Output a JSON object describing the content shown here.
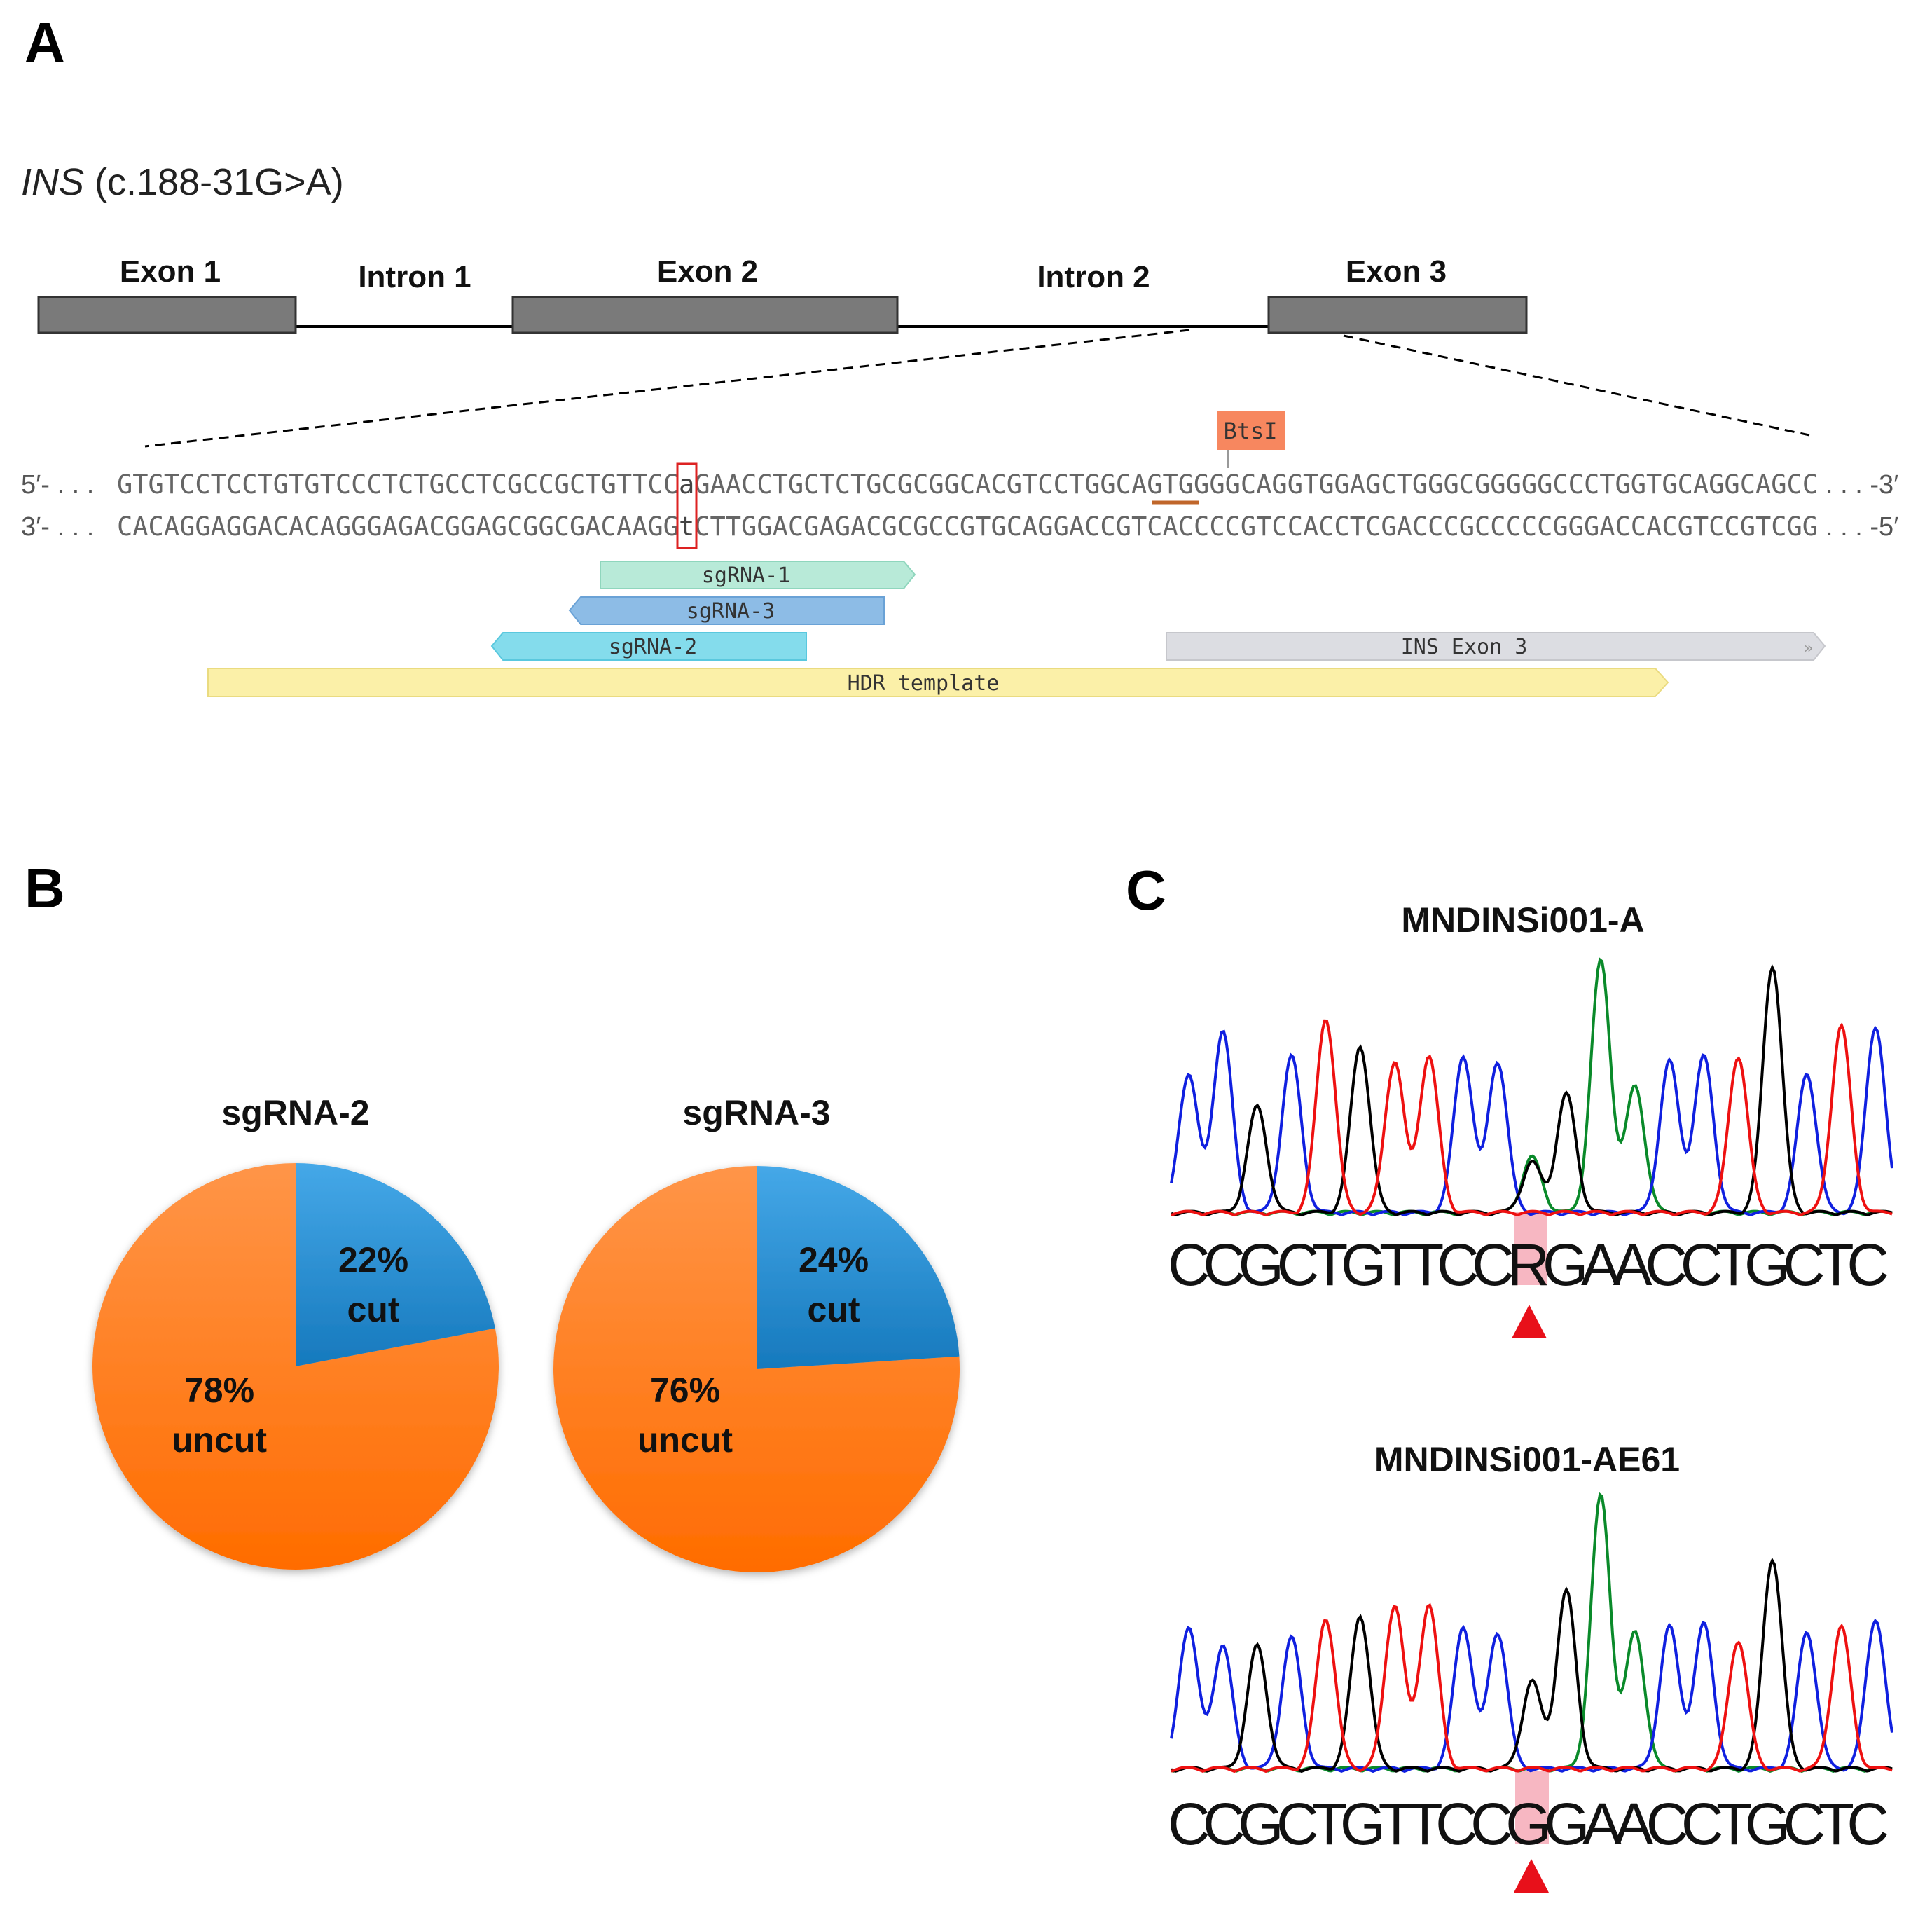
{
  "panelA": {
    "label": "A",
    "gene": "INS",
    "variant": " (c.188-31G>A)",
    "exons": [
      "Exon 1",
      "Exon 2",
      "Exon 3"
    ],
    "introns": [
      "Intron 1",
      "Intron 2"
    ],
    "enzyme": "BtsI",
    "top": {
      "start": "5′- . . .",
      "pre": "GTGTCCTCCTGTGTCCCTCTGCCTCGCCGCTGTTCC",
      "mut": "a",
      "post": "GAACCTGCTCTGCGCGGCACGTCCTGGCAGTGGGGCAGGTGGAGCTGGGCGGGGGCCCTGGTGCAGGCAGCC",
      "end": ". . . -3′"
    },
    "bottom": {
      "start": "3′- . . .",
      "pre": "CACAGGAGGACACAGGGAGACGGAGCGGCGACAAGG",
      "mut": "t",
      "post": "CTTGGACGAGACGCGCCGTGCAGGACCGTCACCCCGTCCACCTCGACCCGCCCCCGGGACCACGTCCGTCGG",
      "end": ". . . -5′"
    },
    "features": {
      "sg1": "sgRNA-1",
      "sg3": "sgRNA-3",
      "sg2": "sgRNA-2",
      "exon3": "INS Exon 3",
      "hdr": "HDR template"
    }
  },
  "panelB": {
    "label": "B",
    "pies": [
      {
        "title": "sgRNA-2",
        "cut": 22,
        "uncut": 78,
        "cut_pct": "22%",
        "cut_label": "cut",
        "uncut_pct": "78%",
        "uncut_label": "uncut"
      },
      {
        "title": "sgRNA-3",
        "cut": 24,
        "uncut": 76,
        "cut_pct": "24%",
        "cut_label": "cut",
        "uncut_pct": "76%",
        "uncut_label": "uncut"
      }
    ],
    "colors": {
      "cut": "#2b8fd6",
      "uncut": "#ff7a1f"
    }
  },
  "panelC": {
    "label": "C",
    "base_colors": {
      "A": "#0a8a2a",
      "C": "#1020e0",
      "G": "#000000",
      "T": "#ee1111"
    },
    "traces": [
      {
        "title": "MNDINSi001-A",
        "calls": [
          "CCGCTGTTCC",
          "R",
          "GAACCTGCTC"
        ],
        "peaks": [
          [
            "C",
            0.55
          ],
          [
            "C",
            0.72
          ],
          [
            "G",
            0.42
          ],
          [
            "C",
            0.62
          ],
          [
            "T",
            0.77
          ],
          [
            "G",
            0.66
          ],
          [
            "T",
            0.6
          ],
          [
            "T",
            0.62
          ],
          [
            "C",
            0.62
          ],
          [
            "C",
            0.6
          ],
          [
            "A",
            0.22
          ],
          [
            "G",
            0.47
          ],
          [
            "A",
            1.0
          ],
          [
            "A",
            0.5
          ],
          [
            "C",
            0.6
          ],
          [
            "C",
            0.62
          ],
          [
            "T",
            0.62
          ],
          [
            "G",
            0.98
          ],
          [
            "C",
            0.55
          ],
          [
            "T",
            0.74
          ],
          [
            "C",
            0.74
          ]
        ],
        "extra": [
          [
            "G",
            10,
            0.2
          ]
        ]
      },
      {
        "title": "MNDINSi001-AE61",
        "calls": [
          "CCGCTGTTCC",
          "G",
          "GAACCTGCTC"
        ],
        "peaks": [
          [
            "C",
            0.52
          ],
          [
            "C",
            0.45
          ],
          [
            "G",
            0.45
          ],
          [
            "C",
            0.48
          ],
          [
            "T",
            0.55
          ],
          [
            "G",
            0.56
          ],
          [
            "T",
            0.6
          ],
          [
            "T",
            0.6
          ],
          [
            "C",
            0.52
          ],
          [
            "C",
            0.5
          ],
          [
            "G",
            0.32
          ],
          [
            "G",
            0.65
          ],
          [
            "A",
            1.0
          ],
          [
            "A",
            0.5
          ],
          [
            "C",
            0.52
          ],
          [
            "C",
            0.53
          ],
          [
            "T",
            0.47
          ],
          [
            "G",
            0.77
          ],
          [
            "C",
            0.5
          ],
          [
            "T",
            0.52
          ],
          [
            "C",
            0.55
          ]
        ],
        "extra": []
      }
    ]
  }
}
